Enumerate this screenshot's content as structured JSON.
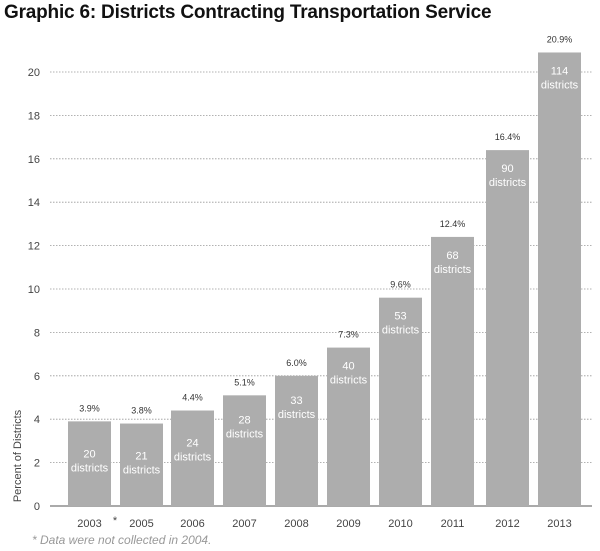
{
  "chart_data": {
    "type": "bar",
    "title": "Graphic 6: Districts Contracting Transportation Service",
    "ylabel": "Percent of Districts",
    "xlabel": "",
    "ylim": [
      0,
      21
    ],
    "yticks": [
      0,
      2,
      4,
      6,
      8,
      10,
      12,
      14,
      16,
      18,
      20
    ],
    "grid": true,
    "categories": [
      "2003",
      "*",
      "2005",
      "2006",
      "2007",
      "2008",
      "2009",
      "2010",
      "2011",
      "2012",
      "2013"
    ],
    "bars": [
      {
        "year": "2003",
        "value": 3.9,
        "label": "3.9%",
        "count": "20",
        "unit": "districts"
      },
      {
        "year": "2005",
        "value": 3.8,
        "label": "3.8%",
        "count": "21",
        "unit": "districts"
      },
      {
        "year": "2006",
        "value": 4.4,
        "label": "4.4%",
        "count": "24",
        "unit": "districts"
      },
      {
        "year": "2007",
        "value": 5.1,
        "label": "5.1%",
        "count": "28",
        "unit": "districts"
      },
      {
        "year": "2008",
        "value": 6.0,
        "label": "6.0%",
        "count": "33",
        "unit": "districts"
      },
      {
        "year": "2009",
        "value": 7.3,
        "label": "7.3%",
        "count": "40",
        "unit": "districts"
      },
      {
        "year": "2010",
        "value": 9.6,
        "label": "9.6%",
        "count": "53",
        "unit": "districts"
      },
      {
        "year": "2011",
        "value": 12.4,
        "label": "12.4%",
        "count": "68",
        "unit": "districts"
      },
      {
        "year": "2012",
        "value": 16.4,
        "label": "16.4%",
        "count": "90",
        "unit": "districts"
      },
      {
        "year": "2013",
        "value": 20.9,
        "label": "20.9%",
        "count": "114",
        "unit": "districts"
      }
    ],
    "footnote": "* Data were not collected in 2004.",
    "colors": {
      "bar": "#adadad",
      "grid": "#999999"
    }
  }
}
